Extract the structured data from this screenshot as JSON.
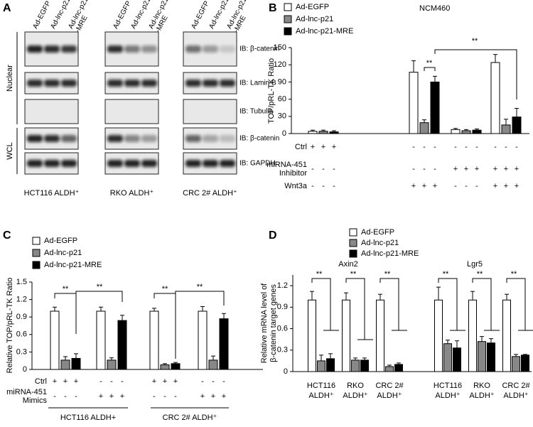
{
  "panel_labels": [
    "A",
    "B",
    "C",
    "D"
  ],
  "blot": {
    "lanes": [
      [
        "Ad-EGFP"
      ],
      [
        "Ad-lnc-p21"
      ],
      [
        "Ad-lnc-p21",
        "-MRE"
      ]
    ],
    "row_groups": [
      "Nuclear",
      "WCL"
    ],
    "rows": [
      "IB: β-catenin",
      "IB: Lamin B",
      "IB: Tubulin",
      "IB: β-catenin",
      "IB: GAPDH"
    ],
    "cell_lines": [
      "HCT116 ALDH⁺",
      "RKO ALDH⁺",
      "CRC 2# ALDH⁺"
    ]
  },
  "chart_data": [
    {
      "type": "bar",
      "title": "NCM460",
      "y_label": "TOP/pRL-TK Ratio",
      "categories": [
        null,
        null,
        null,
        null
      ],
      "series": [
        {
          "name": "Ad-EGFP",
          "color": "#ffffff",
          "values": [
            4,
            107,
            7,
            124
          ],
          "errors": [
            2,
            20,
            2,
            14
          ]
        },
        {
          "name": "Ad-lnc-p21",
          "color": "#888888",
          "values": [
            4,
            19,
            5,
            15
          ],
          "errors": [
            2,
            5,
            2,
            10
          ]
        },
        {
          "name": "Ad-lnc-p21-MRE",
          "color": "#000000",
          "values": [
            3,
            90,
            6,
            29
          ],
          "errors": [
            2,
            10,
            2,
            15
          ]
        }
      ],
      "ylim": [
        0,
        150
      ],
      "yticks": [
        0,
        30,
        60,
        90,
        120,
        150
      ],
      "treatments": [
        {
          "label": "Ctrl",
          "signs": [
            "+",
            "+",
            "+",
            "-",
            "-",
            "-",
            "-",
            "-",
            "-",
            "-",
            "-",
            "-"
          ]
        },
        {
          "label": [
            "miRNA-451",
            "Inhibitor"
          ],
          "signs": [
            "-",
            "-",
            "-",
            "-",
            "-",
            "-",
            "+",
            "+",
            "+",
            "+",
            "+",
            "+"
          ]
        },
        {
          "label": "Wnt3a",
          "signs": [
            "-",
            "-",
            "-",
            "+",
            "+",
            "+",
            "-",
            "-",
            "-",
            "+",
            "+",
            "+"
          ]
        }
      ],
      "annotations": [
        "**",
        "**"
      ]
    },
    {
      "type": "bar",
      "y_label": "Relative TOP/pRL-TK Ratio",
      "categories": [
        null,
        null,
        null,
        null
      ],
      "series": [
        {
          "name": "Ad-EGFP",
          "color": "#ffffff",
          "values": [
            1.0,
            1.0,
            1.0,
            1.0
          ],
          "errors": [
            0.07,
            0.07,
            0.05,
            0.08
          ]
        },
        {
          "name": "Ad-lnc-p21",
          "color": "#888888",
          "values": [
            0.16,
            0.16,
            0.08,
            0.16
          ],
          "errors": [
            0.06,
            0.04,
            0.02,
            0.07
          ]
        },
        {
          "name": "Ad-lnc-p21-MRE",
          "color": "#000000",
          "values": [
            0.19,
            0.84,
            0.1,
            0.87
          ],
          "errors": [
            0.08,
            0.09,
            0.02,
            0.09
          ]
        }
      ],
      "ylim": [
        0,
        1.5
      ],
      "yticks": [
        0,
        0.3,
        0.6,
        0.9,
        1.2,
        1.5
      ],
      "treatments": [
        {
          "label": "Ctrl",
          "signs": [
            "+",
            "+",
            "+",
            "-",
            "-",
            "-",
            "+",
            "+",
            "+",
            "-",
            "-",
            "-"
          ]
        },
        {
          "label": [
            "miRNA-451",
            "Mimics"
          ],
          "signs": [
            "-",
            "-",
            "-",
            "+",
            "+",
            "+",
            "-",
            "-",
            "-",
            "+",
            "+",
            "+"
          ]
        }
      ],
      "groups": [
        "HCT116 ALDH+",
        "CRC 2# ALDH⁺"
      ],
      "annotations": [
        "**",
        "**",
        "**",
        "**"
      ]
    },
    {
      "type": "bar",
      "y_label": [
        "Relative mRNA level of",
        "β-catenin target genes"
      ],
      "categories": [
        [
          "HCT116",
          "ALDH⁺"
        ],
        [
          "RKO",
          "ALDH⁺"
        ],
        [
          "CRC 2#",
          "ALDH⁺"
        ],
        [
          "HCT116",
          "ALDH⁺"
        ],
        [
          "RKO",
          "ALDH⁺"
        ],
        [
          "CRC 2#",
          "ALDH⁺"
        ]
      ],
      "group_labels": [
        "Axin2",
        "Lgr5"
      ],
      "series": [
        {
          "name": "Ad-EGFP",
          "color": "#ffffff",
          "values": [
            1.0,
            1.0,
            1.0,
            1.0,
            1.0,
            1.0
          ],
          "errors": [
            0.12,
            0.1,
            0.08,
            0.18,
            0.12,
            0.08
          ]
        },
        {
          "name": "Ad-lnc-p21",
          "color": "#888888",
          "values": [
            0.15,
            0.16,
            0.07,
            0.39,
            0.42,
            0.21
          ],
          "errors": [
            0.08,
            0.03,
            0.02,
            0.05,
            0.07,
            0.03
          ]
        },
        {
          "name": "Ad-lnc-p21-MRE",
          "color": "#000000",
          "values": [
            0.18,
            0.16,
            0.1,
            0.33,
            0.4,
            0.23
          ],
          "errors": [
            0.07,
            0.03,
            0.02,
            0.1,
            0.06,
            0.01
          ]
        }
      ],
      "ylim": [
        0,
        1.35
      ],
      "yticks": [
        0,
        0.3,
        0.6,
        0.9,
        1.2
      ],
      "annotations": [
        "**",
        "**",
        "**",
        "**",
        "**",
        "**"
      ]
    }
  ]
}
